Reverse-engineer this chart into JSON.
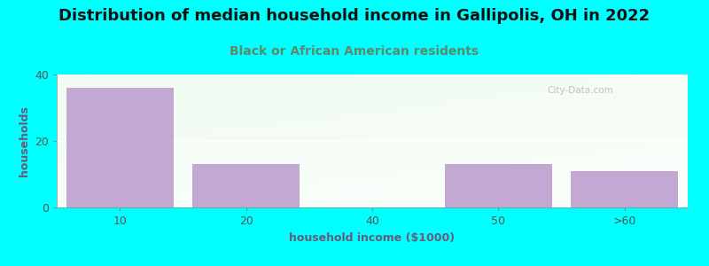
{
  "title": "Distribution of median household income in Gallipolis, OH in 2022",
  "subtitle": "Black or African American residents",
  "xlabel": "household income ($1000)",
  "ylabel": "households",
  "categories": [
    "10",
    "20",
    "40",
    "50",
    ">60"
  ],
  "values": [
    36,
    13,
    0,
    13,
    11
  ],
  "bar_color": "#c4a8d4",
  "background_color": "#00ffff",
  "plot_bg_color_topleft": "#d8efd8",
  "plot_bg_color_topright": "#e8f8f0",
  "plot_bg_color_bottom": "#ffffff",
  "ylim": [
    0,
    40
  ],
  "yticks": [
    0,
    20,
    40
  ],
  "title_fontsize": 13,
  "subtitle_fontsize": 10,
  "axis_label_fontsize": 9,
  "tick_fontsize": 9,
  "title_color": "#111111",
  "subtitle_color": "#5a8a6a",
  "axis_label_color": "#6a5a7a",
  "tick_color": "#555555",
  "watermark": "City-Data.com",
  "grid_color": "#ffffff",
  "bar_width": 0.85
}
